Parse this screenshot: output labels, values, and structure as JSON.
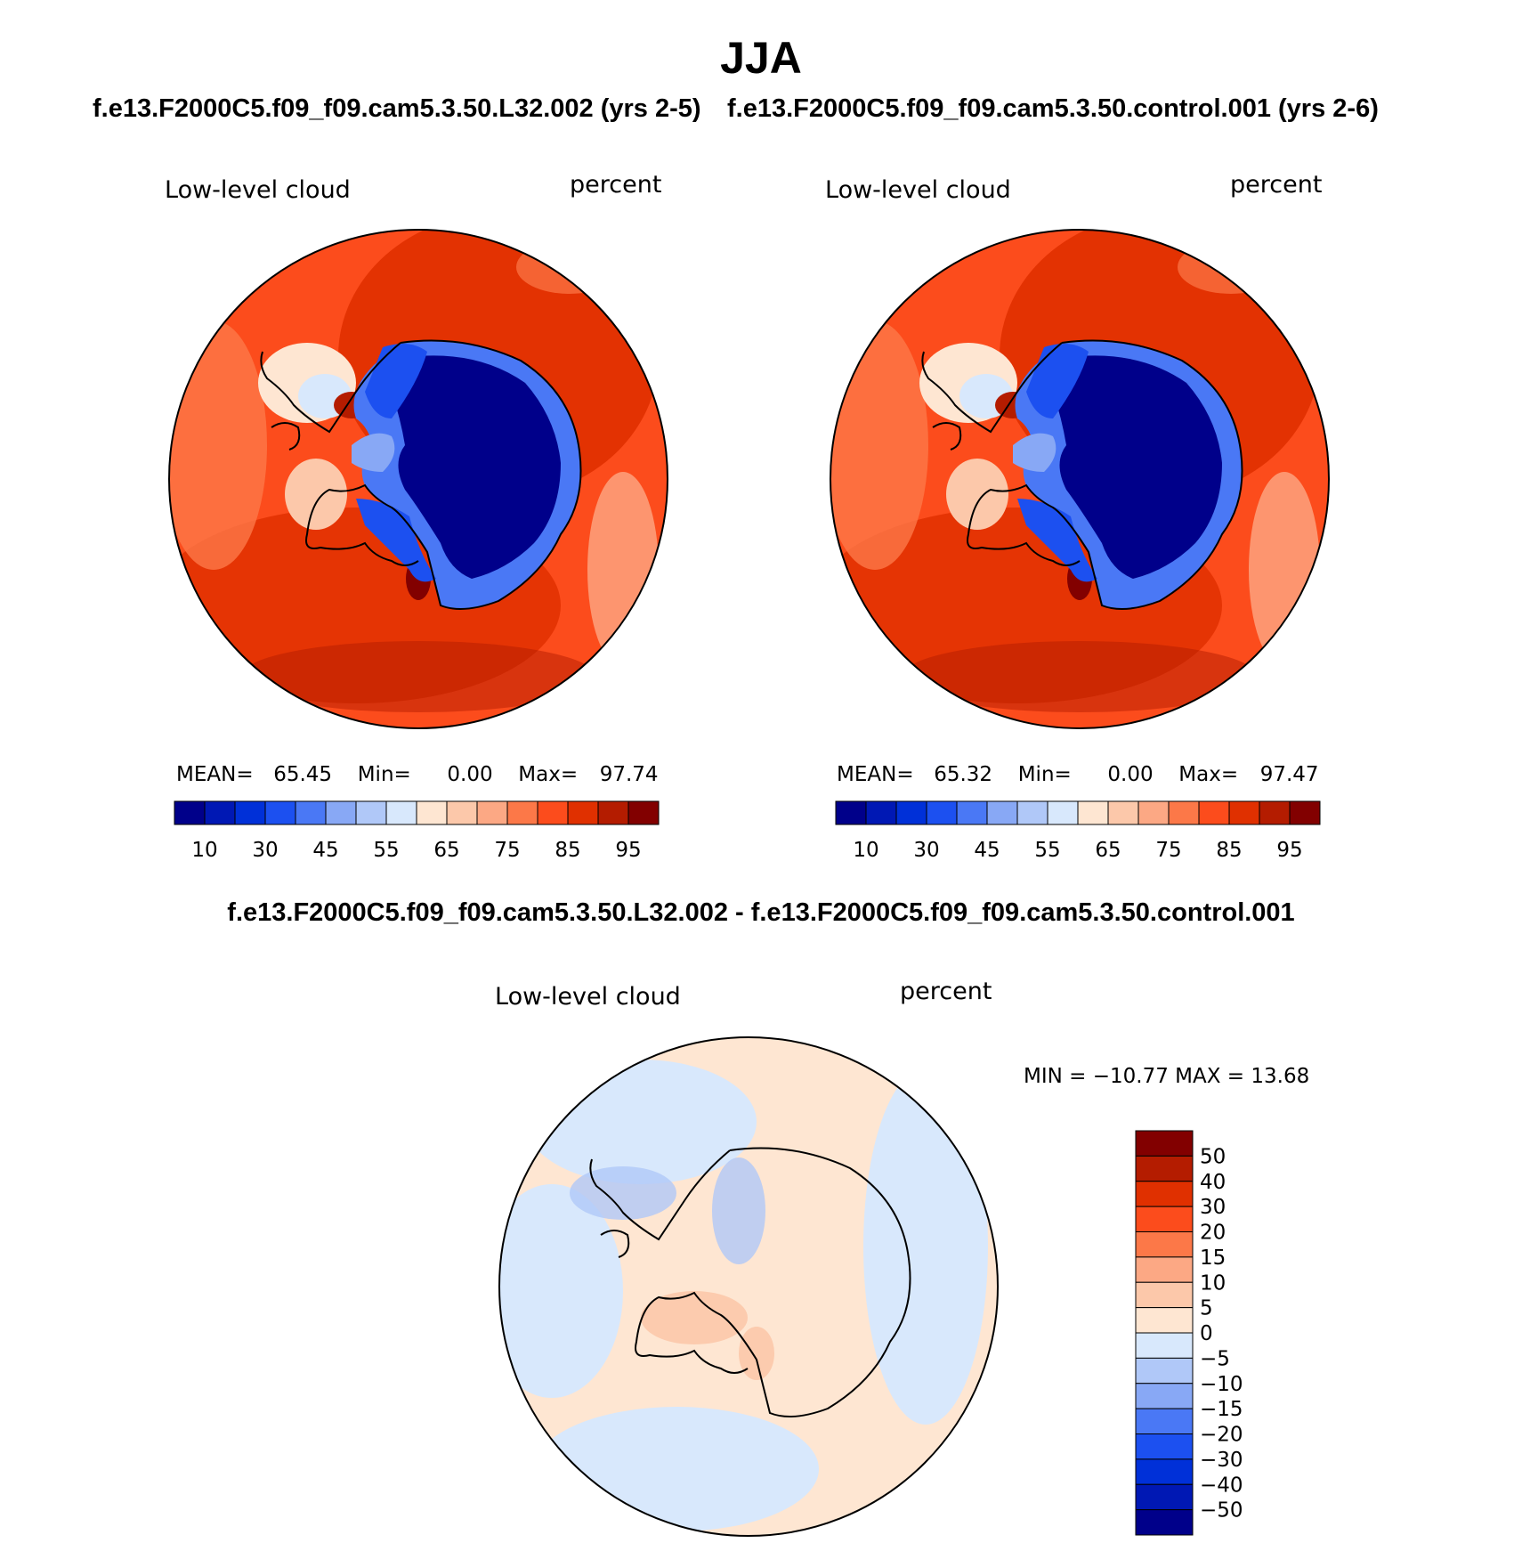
{
  "title": "JJA",
  "chart_data": [
    {
      "type": "heatmap",
      "projection": "south-polar-stereographic",
      "subtitle": "f.e13.F2000C5.f09_f09.cam5.3.50.L32.002 (yrs 2-5)",
      "variable_label": "Low-level cloud",
      "units_label": "percent",
      "stats": {
        "mean_label": "MEAN=",
        "mean": "65.45",
        "min_label": "Min=",
        "min": "0.00",
        "max_label": "Max=",
        "max": "97.74"
      },
      "colorbar": {
        "orientation": "horizontal",
        "colors": [
          "#00008a",
          "#0018b4",
          "#0030d8",
          "#1c50f0",
          "#4a78f5",
          "#88a8f5",
          "#b0c8f8",
          "#d8e8fc",
          "#fee6d2",
          "#fcc8aa",
          "#fca884",
          "#fc7848",
          "#fc4c1c",
          "#e03000",
          "#b41c00",
          "#820000"
        ],
        "tick_labels": [
          "10",
          "30",
          "45",
          "55",
          "65",
          "75",
          "85",
          "95"
        ]
      }
    },
    {
      "type": "heatmap",
      "projection": "south-polar-stereographic",
      "subtitle": "f.e13.F2000C5.f09_f09.cam5.3.50.control.001 (yrs 2-6)",
      "variable_label": "Low-level cloud",
      "units_label": "percent",
      "stats": {
        "mean_label": "MEAN=",
        "mean": "65.32",
        "min_label": "Min=",
        "min": "0.00",
        "max_label": "Max=",
        "max": "97.47"
      },
      "colorbar": {
        "orientation": "horizontal",
        "colors": [
          "#00008a",
          "#0018b4",
          "#0030d8",
          "#1c50f0",
          "#4a78f5",
          "#88a8f5",
          "#b0c8f8",
          "#d8e8fc",
          "#fee6d2",
          "#fcc8aa",
          "#fca884",
          "#fc7848",
          "#fc4c1c",
          "#e03000",
          "#b41c00",
          "#820000"
        ],
        "tick_labels": [
          "10",
          "30",
          "45",
          "55",
          "65",
          "75",
          "85",
          "95"
        ]
      }
    },
    {
      "type": "heatmap",
      "projection": "south-polar-stereographic",
      "subtitle": "f.e13.F2000C5.f09_f09.cam5.3.50.L32.002 - f.e13.F2000C5.f09_f09.cam5.3.50.control.001",
      "variable_label": "Low-level cloud",
      "units_label": "percent",
      "stats_text": "MIN = −10.77 MAX =   13.68",
      "colorbar": {
        "orientation": "vertical",
        "colors_top_to_bottom": [
          "#820000",
          "#b41c00",
          "#e03000",
          "#fc4c1c",
          "#fc7848",
          "#fca884",
          "#fcc8aa",
          "#fee6d2",
          "#d8e8fc",
          "#b0c8f8",
          "#88a8f5",
          "#4a78f5",
          "#1c50f0",
          "#0030d8",
          "#0018b4",
          "#00008a"
        ],
        "tick_labels": [
          "50",
          "40",
          "30",
          "20",
          "15",
          "10",
          "5",
          "0",
          "−5",
          "−10",
          "−15",
          "−20",
          "−30",
          "−40",
          "−50"
        ]
      }
    }
  ]
}
